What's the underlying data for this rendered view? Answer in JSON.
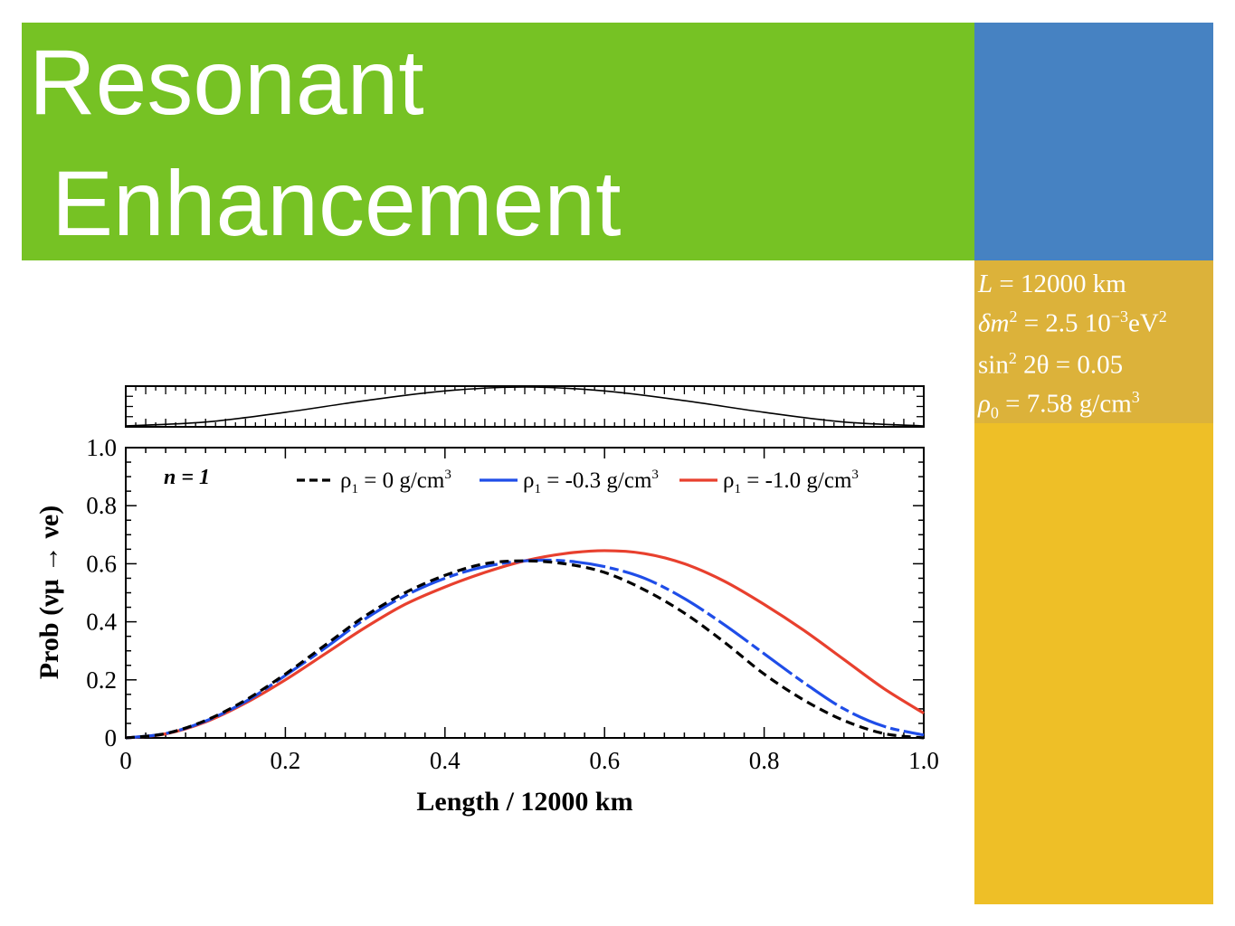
{
  "slide": {
    "title_line1": "Resonant",
    "title_line2": "Enhancement",
    "colors": {
      "title_band": "#76c224",
      "blue_block": "#4682c2",
      "yellow_block": "#eebf27",
      "param_box": "#dcb23a"
    }
  },
  "params": {
    "L_lhs": "L",
    "L_rhs": "= 12000 km",
    "dm_lhs": "δm",
    "dm_rhs": "= 2.5 10",
    "dm_exp": "−3",
    "dm_unit": "eV",
    "sin_lhs": "sin",
    "sin_rhs": "2θ = 0.05",
    "rho_lhs": "ρ",
    "rho_sub": "0",
    "rho_rhs": "= 7.58 g/cm",
    "rho_exp": "3"
  },
  "chart_data": {
    "type": "line",
    "title": "",
    "annotation": "n = 1",
    "xlabel": "Length / 12000 km",
    "ylabel": "Prob (νμ → νe)",
    "xlim": [
      0,
      1.0
    ],
    "ylim": [
      0,
      1.0
    ],
    "x_ticks": [
      "0",
      "0.2",
      "0.4",
      "0.6",
      "0.8",
      "1.0"
    ],
    "y_ticks": [
      "0",
      "0.2",
      "0.4",
      "0.6",
      "0.8",
      "1.0"
    ],
    "legend_position": "top",
    "grid": false,
    "x": [
      0,
      0.05,
      0.1,
      0.15,
      0.2,
      0.25,
      0.3,
      0.35,
      0.4,
      0.45,
      0.5,
      0.55,
      0.6,
      0.65,
      0.7,
      0.75,
      0.8,
      0.85,
      0.9,
      0.95,
      1.0
    ],
    "series": [
      {
        "name": "ρ1 = 0 g/cm3",
        "label_main": "ρ",
        "label_sub": "1",
        "label_rest": " = 0 g/cm",
        "label_sup": "3",
        "color": "#000000",
        "dash": "10,6",
        "values": [
          0.0,
          0.015,
          0.06,
          0.13,
          0.22,
          0.32,
          0.42,
          0.5,
          0.56,
          0.6,
          0.61,
          0.6,
          0.57,
          0.51,
          0.43,
          0.33,
          0.22,
          0.13,
          0.06,
          0.015,
          0.0
        ]
      },
      {
        "name": "ρ1 = -0.3 g/cm3",
        "label_main": "ρ",
        "label_sub": "1",
        "label_rest": " = -0.3 g/cm",
        "label_sup": "3",
        "color": "#1f4de8",
        "dash": "40,5,10,5",
        "values": [
          0.0,
          0.015,
          0.058,
          0.125,
          0.215,
          0.31,
          0.41,
          0.49,
          0.55,
          0.59,
          0.61,
          0.61,
          0.59,
          0.55,
          0.48,
          0.39,
          0.29,
          0.19,
          0.1,
          0.04,
          0.01
        ]
      },
      {
        "name": "ρ1 = -1.0 g/cm3",
        "label_main": "ρ",
        "label_sub": "1",
        "label_rest": " = -1.0 g/cm",
        "label_sup": "3",
        "color": "#e8402e",
        "dash": "",
        "values": [
          0.0,
          0.014,
          0.055,
          0.12,
          0.2,
          0.29,
          0.38,
          0.46,
          0.52,
          0.57,
          0.61,
          0.635,
          0.645,
          0.635,
          0.6,
          0.54,
          0.46,
          0.37,
          0.27,
          0.17,
          0.085
        ]
      }
    ],
    "inset": {
      "type": "line",
      "description_series": "density profile",
      "x": [
        0,
        0.1,
        0.2,
        0.3,
        0.4,
        0.5,
        0.6,
        0.7,
        0.8,
        0.9,
        1.0
      ],
      "values": [
        0.0,
        0.1,
        0.35,
        0.65,
        0.9,
        1.0,
        0.9,
        0.65,
        0.35,
        0.1,
        0.0
      ],
      "color": "#000000"
    }
  }
}
